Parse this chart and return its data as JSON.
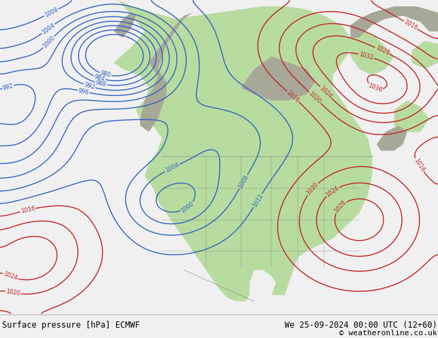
{
  "title_left": "Surface pressure [hPa] ECMWF",
  "title_right": "We 25-09-2024 00:00 UTC (12+60)",
  "copyright": "© weatheronline.co.uk",
  "bg_color": "#f0f0f0",
  "ocean_color": "#e8e8e8",
  "land_green": "#b8dca0",
  "land_gray": "#a8a898",
  "border_color": "#606060",
  "contour_blue": "#3060c0",
  "contour_red": "#c02020",
  "contour_black": "#000000",
  "bottom_bar_color": "#d8d8d8",
  "bottom_text_color": "#000000",
  "fig_width": 6.34,
  "fig_height": 4.9,
  "dpi": 100,
  "font_size_bottom": 8.5,
  "font_size_label": 6
}
